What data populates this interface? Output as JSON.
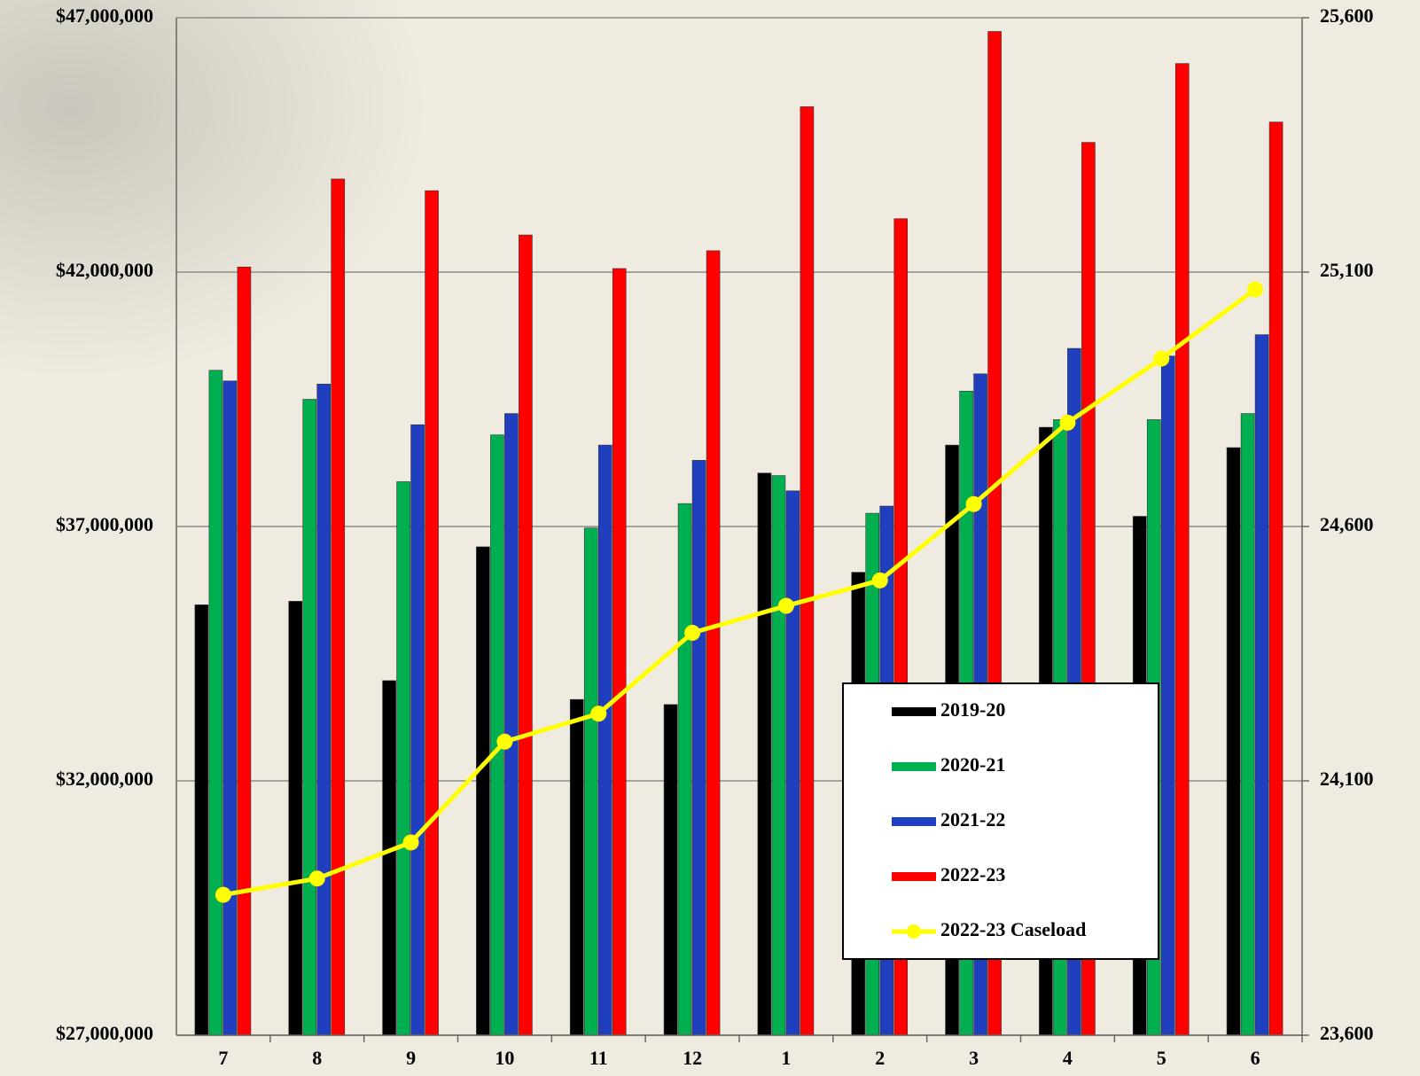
{
  "chart_data": {
    "type": "bar",
    "categories": [
      "7",
      "8",
      "9",
      "10",
      "11",
      "12",
      "1",
      "2",
      "3",
      "4",
      "5",
      "6"
    ],
    "series": [
      {
        "name": "2019-20",
        "color": "#000000",
        "values": [
          35460000,
          35530000,
          33970000,
          36600000,
          33600000,
          33500000,
          38050000,
          36100000,
          38600000,
          38950000,
          37200000,
          38550000
        ]
      },
      {
        "name": "2020-21",
        "color": "#00b050",
        "values": [
          40070000,
          39500000,
          37880000,
          38800000,
          36970000,
          37450000,
          38000000,
          37260000,
          39660000,
          39100000,
          39100000,
          39220000
        ]
      },
      {
        "name": "2021-22",
        "color": "#1f3fbf",
        "values": [
          39860000,
          39800000,
          39000000,
          39220000,
          38600000,
          38300000,
          37700000,
          37400000,
          40000000,
          40500000,
          40350000,
          40770000
        ]
      },
      {
        "name": "2022-23",
        "color": "#ff0000",
        "values": [
          42100000,
          43830000,
          43600000,
          42730000,
          42070000,
          42420000,
          45250000,
          43050000,
          46730000,
          44550000,
          46100000,
          44950000
        ]
      },
      {
        "name": "2022-23 Caseload",
        "type": "line",
        "axis": "y2",
        "color": "#ffff00",
        "values": [
          23876,
          23908,
          23979,
          24177,
          24232,
          24391,
          24444,
          24494,
          24644,
          24804,
          24930,
          25066
        ]
      }
    ],
    "ylim": [
      27000000,
      47000000
    ],
    "yticks": [
      {
        "value": 27000000,
        "label": "$27,000,000"
      },
      {
        "value": 32000000,
        "label": "$32,000,000"
      },
      {
        "value": 37000000,
        "label": "$37,000,000"
      },
      {
        "value": 42000000,
        "label": "$42,000,000"
      },
      {
        "value": 47000000,
        "label": "$47,000,000"
      }
    ],
    "y2lim": [
      23600,
      25600
    ],
    "y2ticks": [
      {
        "value": 23600,
        "label": "23,600"
      },
      {
        "value": 24100,
        "label": "24,100"
      },
      {
        "value": 24600,
        "label": "24,600"
      },
      {
        "value": 25100,
        "label": "25,100"
      },
      {
        "value": 25600,
        "label": "25,600"
      }
    ],
    "grid": true
  }
}
